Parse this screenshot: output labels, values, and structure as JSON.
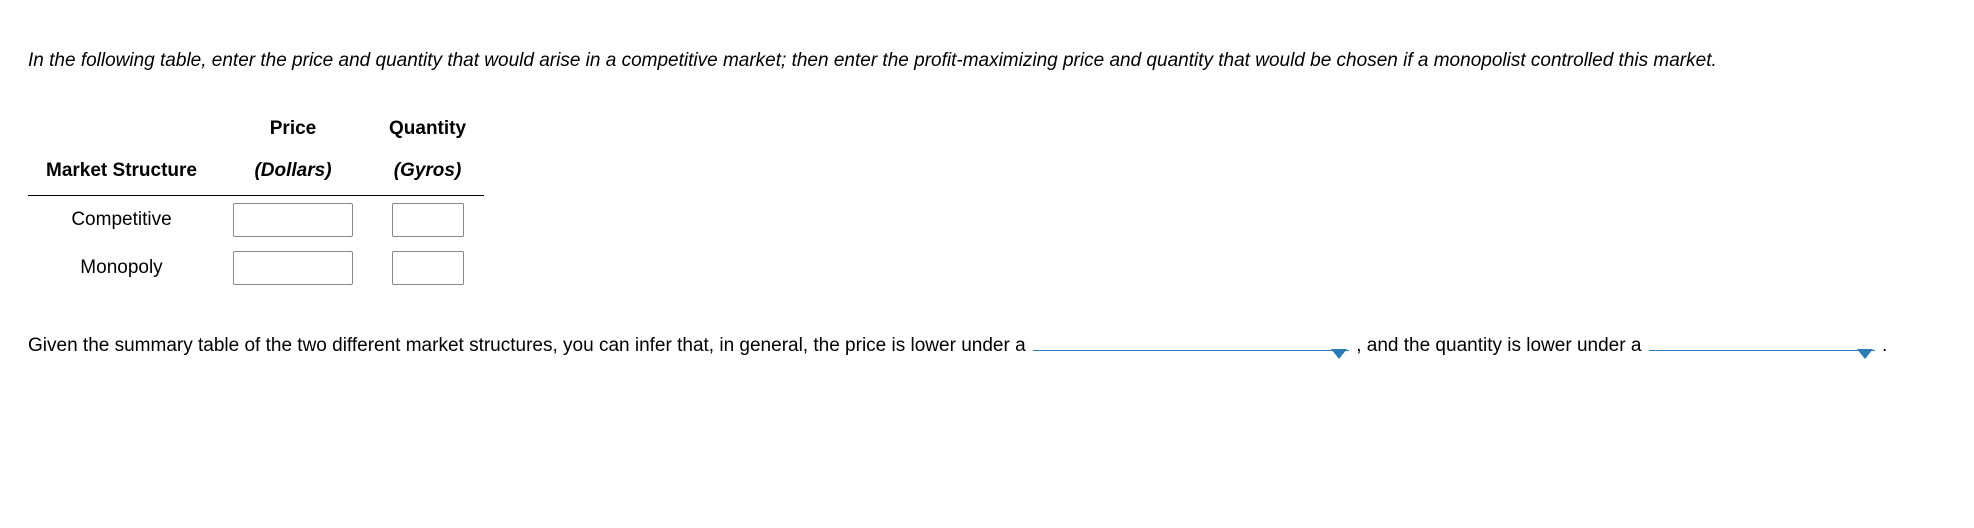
{
  "intro": "In the following table, enter the price and quantity that would arise in a competitive market; then enter the profit-maximizing price and quantity that would be chosen if a monopolist controlled this market.",
  "table": {
    "col_structure": "Market Structure",
    "col_price": "Price",
    "col_price_sub": "(Dollars)",
    "col_qty": "Quantity",
    "col_qty_sub": "(Gyros)",
    "rows": [
      {
        "label": "Competitive",
        "price": "",
        "qty": ""
      },
      {
        "label": "Monopoly",
        "price": "",
        "qty": ""
      }
    ]
  },
  "fill": {
    "part1": "Given the summary table of the two different market structures, you can infer that, in general, the price is lower under a",
    "comma": ",",
    "part2": "and the quantity is lower under a",
    "period": "."
  },
  "dropdowns": {
    "price_lower": "",
    "qty_lower": ""
  }
}
